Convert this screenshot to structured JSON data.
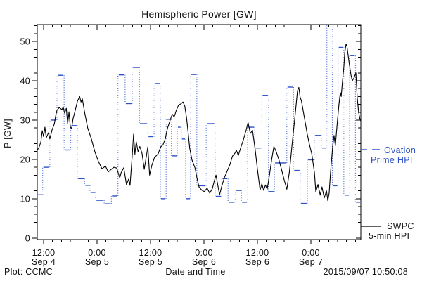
{
  "colors": {
    "ovation_blue": "#2b50c8",
    "swpc_black": "#000000",
    "background": "#ffffff",
    "text": "#111111"
  },
  "footer": {
    "left": "Plot: CCMC",
    "right": "2015/09/07 10:50:08"
  },
  "legend": {
    "ovation": {
      "line1": "Ovation",
      "line2": "Prime HPI"
    },
    "swpc": {
      "line1": "SWPC",
      "line2": "5-min HPI"
    }
  },
  "chart_data": {
    "type": "line",
    "title": "Hemispheric Power [GW]",
    "xlabel": "Date and Time",
    "ylabel": "P [GW]",
    "ylim": [
      0,
      54
    ],
    "yticks": [
      0,
      10,
      20,
      30,
      40,
      50
    ],
    "y_minor_step": 2,
    "x_minor_step_hours": 2,
    "x_unit": "hours since Sep 4 12:00 tick",
    "x_axis_hours_range": [
      -1.4,
      71.2
    ],
    "xticks": [
      {
        "hour": 0,
        "time": "12:00",
        "date": "Sep 4"
      },
      {
        "hour": 12,
        "time": "0:00",
        "date": "Sep 5"
      },
      {
        "hour": 24,
        "time": "12:00",
        "date": "Sep 5"
      },
      {
        "hour": 36,
        "time": "0:00",
        "date": "Sep 6"
      },
      {
        "hour": 48,
        "time": "12:00",
        "date": "Sep 6"
      },
      {
        "hour": 60,
        "time": "0:00",
        "date": "Sep 7"
      }
    ],
    "grid": false,
    "legend_position": "right-outside",
    "series": [
      {
        "name": "Ovation Prime HPI",
        "style": "steps-with-dotted-connectors",
        "color": "#2b50c8",
        "end_hour": 71.2,
        "steps": [
          [
            -1.4,
            11.0
          ],
          [
            -0.2,
            18.0
          ],
          [
            1.4,
            30.0
          ],
          [
            3.0,
            41.4
          ],
          [
            4.6,
            22.4
          ],
          [
            6.1,
            28.6
          ],
          [
            7.6,
            15.1
          ],
          [
            9.2,
            13.4
          ],
          [
            10.4,
            11.6
          ],
          [
            11.7,
            9.6
          ],
          [
            13.6,
            8.7
          ],
          [
            15.2,
            10.7
          ],
          [
            16.7,
            41.5
          ],
          [
            18.3,
            34.2
          ],
          [
            19.9,
            43.4
          ],
          [
            21.5,
            29.1
          ],
          [
            23.4,
            25.8
          ],
          [
            24.8,
            39.3
          ],
          [
            26.2,
            10.0
          ],
          [
            27.5,
            30.2
          ],
          [
            28.7,
            20.9
          ],
          [
            30.0,
            28.2
          ],
          [
            30.9,
            25.2
          ],
          [
            31.9,
            10.0
          ],
          [
            33.0,
            41.6
          ],
          [
            34.4,
            13.3
          ],
          [
            36.5,
            29.1
          ],
          [
            38.5,
            10.6
          ],
          [
            40.0,
            15.1
          ],
          [
            41.4,
            9.1
          ],
          [
            43.0,
            12.1
          ],
          [
            44.4,
            9.1
          ],
          [
            45.8,
            28.2
          ],
          [
            47.4,
            22.9
          ],
          [
            49.0,
            36.3
          ],
          [
            50.5,
            11.8
          ],
          [
            51.8,
            19.1
          ],
          [
            54.6,
            38.4
          ],
          [
            56.1,
            17.2
          ],
          [
            57.6,
            8.8
          ],
          [
            59.2,
            19.9
          ],
          [
            60.8,
            26.1
          ],
          [
            62.4,
            22.9
          ],
          [
            63.6,
            55.0
          ],
          [
            64.8,
            13.3
          ],
          [
            66.1,
            48.5
          ],
          [
            67.4,
            10.9
          ],
          [
            68.7,
            46.4
          ],
          [
            70.0,
            9.1
          ]
        ]
      },
      {
        "name": "SWPC 5-min HPI",
        "style": "solid-line",
        "color": "#000000",
        "points": [
          [
            -1.4,
            22.5
          ],
          [
            -1.1,
            22.8
          ],
          [
            -0.6,
            24.5
          ],
          [
            -0.3,
            27.3
          ],
          [
            0.0,
            25.8
          ],
          [
            0.3,
            28.2
          ],
          [
            0.6,
            25.5
          ],
          [
            1.1,
            26.8
          ],
          [
            1.4,
            25.2
          ],
          [
            1.9,
            27.5
          ],
          [
            2.4,
            29.0
          ],
          [
            2.7,
            31.0
          ],
          [
            3.0,
            32.5
          ],
          [
            3.5,
            33.2
          ],
          [
            4.1,
            32.7
          ],
          [
            4.4,
            33.3
          ],
          [
            4.7,
            31.8
          ],
          [
            5.1,
            33.0
          ],
          [
            5.4,
            29.1
          ],
          [
            5.7,
            32.1
          ],
          [
            6.0,
            28.2
          ],
          [
            6.3,
            27.9
          ],
          [
            6.6,
            30.3
          ],
          [
            7.1,
            32.5
          ],
          [
            7.6,
            34.8
          ],
          [
            8.1,
            36.0
          ],
          [
            8.4,
            34.6
          ],
          [
            8.7,
            35.4
          ],
          [
            9.2,
            32.0
          ],
          [
            9.9,
            28.0
          ],
          [
            10.7,
            25.3
          ],
          [
            11.5,
            22.0
          ],
          [
            12.3,
            19.5
          ],
          [
            13.1,
            17.6
          ],
          [
            13.9,
            18.3
          ],
          [
            14.5,
            16.8
          ],
          [
            15.2,
            17.5
          ],
          [
            15.8,
            18.0
          ],
          [
            16.4,
            17.8
          ],
          [
            17.1,
            15.3
          ],
          [
            17.4,
            16.6
          ],
          [
            18.0,
            17.9
          ],
          [
            18.6,
            13.6
          ],
          [
            19.1,
            15.0
          ],
          [
            19.4,
            13.4
          ],
          [
            19.9,
            21.0
          ],
          [
            20.2,
            26.4
          ],
          [
            20.5,
            21.3
          ],
          [
            20.8,
            24.5
          ],
          [
            21.2,
            22.0
          ],
          [
            21.6,
            23.3
          ],
          [
            22.1,
            21.5
          ],
          [
            22.6,
            17.5
          ],
          [
            23.1,
            21.0
          ],
          [
            23.4,
            23.2
          ],
          [
            23.8,
            16.0
          ],
          [
            24.3,
            18.5
          ],
          [
            24.9,
            20.5
          ],
          [
            25.7,
            21.4
          ],
          [
            26.3,
            23.2
          ],
          [
            26.8,
            23.7
          ],
          [
            27.3,
            25.2
          ],
          [
            27.8,
            27.9
          ],
          [
            28.6,
            30.6
          ],
          [
            28.9,
            31.5
          ],
          [
            29.3,
            30.8
          ],
          [
            29.8,
            32.5
          ],
          [
            30.3,
            33.8
          ],
          [
            30.9,
            34.2
          ],
          [
            31.3,
            34.6
          ],
          [
            31.7,
            33.5
          ],
          [
            32.1,
            30.5
          ],
          [
            32.4,
            27.3
          ],
          [
            32.8,
            22.9
          ],
          [
            33.3,
            19.9
          ],
          [
            34.0,
            17.8
          ],
          [
            34.4,
            15.4
          ],
          [
            34.9,
            13.0
          ],
          [
            35.5,
            12.2
          ],
          [
            36.1,
            11.8
          ],
          [
            36.7,
            12.7
          ],
          [
            37.3,
            11.4
          ],
          [
            37.9,
            12.6
          ],
          [
            38.3,
            14.5
          ],
          [
            38.7,
            16.0
          ],
          [
            39.0,
            14.1
          ],
          [
            39.5,
            11.0
          ],
          [
            40.0,
            13.2
          ],
          [
            40.6,
            15.4
          ],
          [
            41.2,
            17.0
          ],
          [
            41.8,
            18.6
          ],
          [
            42.4,
            20.8
          ],
          [
            42.9,
            21.5
          ],
          [
            43.3,
            22.3
          ],
          [
            43.7,
            21.0
          ],
          [
            44.4,
            23.5
          ],
          [
            44.8,
            24.8
          ],
          [
            45.5,
            27.6
          ],
          [
            45.9,
            29.4
          ],
          [
            46.4,
            26.6
          ],
          [
            46.9,
            27.4
          ],
          [
            47.5,
            22.5
          ],
          [
            48.0,
            17.5
          ],
          [
            48.6,
            12.2
          ],
          [
            49.0,
            13.8
          ],
          [
            49.4,
            12.1
          ],
          [
            49.8,
            13.5
          ],
          [
            50.2,
            12.4
          ],
          [
            50.7,
            16.0
          ],
          [
            51.2,
            20.0
          ],
          [
            51.7,
            23.3
          ],
          [
            52.2,
            22.0
          ],
          [
            52.8,
            20.0
          ],
          [
            53.4,
            17.5
          ],
          [
            54.0,
            14.8
          ],
          [
            54.6,
            12.4
          ],
          [
            55.2,
            17.0
          ],
          [
            55.8,
            24.0
          ],
          [
            56.3,
            29.5
          ],
          [
            56.7,
            34.0
          ],
          [
            57.0,
            37.5
          ],
          [
            57.3,
            38.3
          ],
          [
            57.6,
            35.8
          ],
          [
            57.9,
            34.8
          ],
          [
            58.6,
            30.3
          ],
          [
            59.2,
            26.4
          ],
          [
            59.7,
            23.7
          ],
          [
            60.2,
            21.4
          ],
          [
            60.8,
            16.6
          ],
          [
            61.1,
            11.8
          ],
          [
            61.6,
            13.6
          ],
          [
            62.1,
            10.9
          ],
          [
            62.5,
            13.0
          ],
          [
            63.0,
            10.2
          ],
          [
            63.5,
            12.0
          ],
          [
            63.8,
            9.5
          ],
          [
            64.1,
            11.5
          ],
          [
            64.4,
            16.6
          ],
          [
            64.9,
            23.2
          ],
          [
            65.2,
            26.1
          ],
          [
            65.5,
            23.5
          ],
          [
            66.0,
            30.3
          ],
          [
            66.3,
            33.9
          ],
          [
            66.6,
            37.0
          ],
          [
            66.8,
            36.0
          ],
          [
            67.1,
            40.0
          ],
          [
            67.4,
            43.5
          ],
          [
            67.6,
            47.0
          ],
          [
            67.9,
            49.4
          ],
          [
            68.1,
            48.8
          ],
          [
            68.3,
            47.0
          ],
          [
            68.6,
            44.5
          ],
          [
            69.0,
            41.5
          ],
          [
            69.3,
            40.0
          ],
          [
            69.7,
            40.8
          ],
          [
            70.1,
            42.0
          ],
          [
            70.4,
            35.7
          ],
          [
            70.7,
            32.1
          ],
          [
            71.0,
            30.3
          ],
          [
            71.2,
            29.8
          ]
        ]
      }
    ]
  }
}
